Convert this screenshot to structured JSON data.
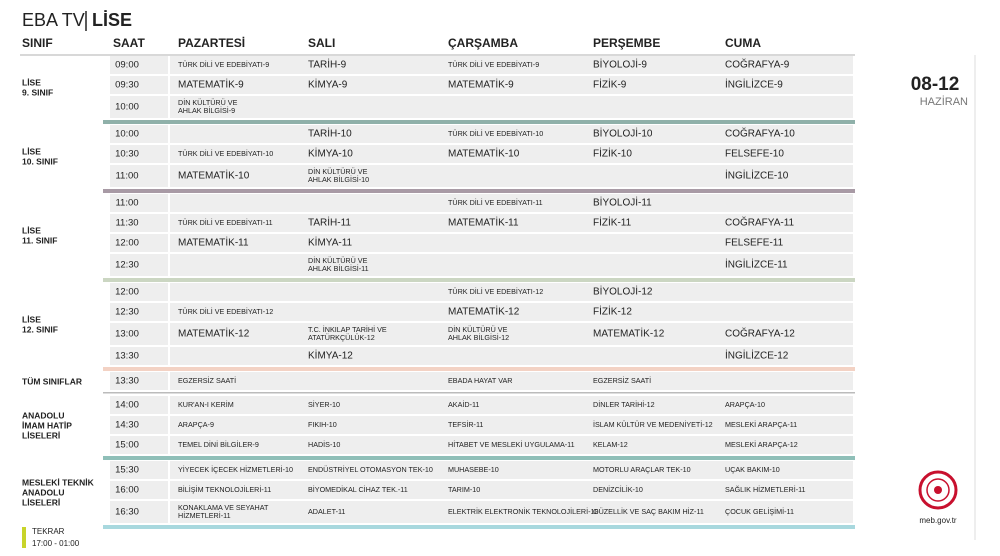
{
  "header": {
    "title": "EBA TV",
    "subtitle": "LİSE"
  },
  "columns": [
    "SINIF",
    "SAAT",
    "PAZARTESİ",
    "SALI",
    "ÇARŞAMBA",
    "PERŞEMBE",
    "CUMA"
  ],
  "date": {
    "range": "08-12",
    "month": "HAZİRAN"
  },
  "groups": [
    {
      "label": [
        "LİSE",
        "9. SINIF"
      ],
      "color": "#8fb0a9",
      "rows": [
        {
          "time": "09:00",
          "cells": [
            "TÜRK DİLİ VE EDEBİYATI-9",
            "TARİH-9",
            "TÜRK DİLİ VE EDEBİYATI-9",
            "BİYOLOJİ-9",
            "COĞRAFYA-9"
          ]
        },
        {
          "time": "09:30",
          "cells": [
            "MATEMATİK-9",
            "KİMYA-9",
            "MATEMATİK-9",
            "FİZİK-9",
            "İNGİLİZCE-9"
          ]
        },
        {
          "time": "10:00",
          "cells": [
            [
              "DİN KÜLTÜRÜ VE",
              "AHLAK BİLGİSİ-9"
            ],
            null,
            null,
            null,
            null
          ]
        }
      ]
    },
    {
      "label": [
        "LİSE",
        "10. SINIF"
      ],
      "color": "#a89aa5",
      "rows": [
        {
          "time": "10:00",
          "cells": [
            null,
            "TARİH-10",
            "TÜRK DİLİ VE EDEBİYATI-10",
            "BİYOLOJİ-10",
            "COĞRAFYA-10"
          ]
        },
        {
          "time": "10:30",
          "cells": [
            "TÜRK DİLİ VE EDEBİYATI-10",
            "KİMYA-10",
            "MATEMATİK-10",
            "FİZİK-10",
            "FELSEFE-10"
          ]
        },
        {
          "time": "11:00",
          "cells": [
            "MATEMATİK-10",
            [
              "DİN KÜLTÜRÜ VE",
              "AHLAK BİLGİSİ-10"
            ],
            null,
            null,
            "İNGİLİZCE-10"
          ]
        }
      ]
    },
    {
      "label": [
        "LİSE",
        "11. SINIF"
      ],
      "color": "#cbd6c2",
      "rows": [
        {
          "time": "11:00",
          "cells": [
            null,
            null,
            "TÜRK DİLİ VE EDEBİYATI-11",
            "BİYOLOJİ-11",
            null
          ]
        },
        {
          "time": "11:30",
          "cells": [
            "TÜRK DİLİ VE EDEBİYATI-11",
            "TARİH-11",
            "MATEMATİK-11",
            "FİZİK-11",
            "COĞRAFYA-11"
          ]
        },
        {
          "time": "12:00",
          "cells": [
            "MATEMATİK-11",
            "KİMYA-11",
            null,
            null,
            "FELSEFE-11"
          ]
        },
        {
          "time": "12:30",
          "cells": [
            null,
            [
              "DİN KÜLTÜRÜ VE",
              "AHLAK BİLGİSİ-11"
            ],
            null,
            null,
            "İNGİLİZCE-11"
          ]
        }
      ]
    },
    {
      "label": [
        "LİSE",
        "12. SINIF"
      ],
      "color": "#f3d2c4",
      "rows": [
        {
          "time": "12:00",
          "cells": [
            null,
            null,
            "TÜRK DİLİ VE EDEBİYATI-12",
            "BİYOLOJİ-12",
            null
          ]
        },
        {
          "time": "12:30",
          "cells": [
            "TÜRK DİLİ VE EDEBİYATI-12",
            null,
            "MATEMATİK-12",
            "FİZİK-12",
            null
          ]
        },
        {
          "time": "13:00",
          "cells": [
            "MATEMATİK-12",
            [
              "T.C. İNKILAP TARİHİ VE",
              "ATATÜRKÇÜLÜK-12"
            ],
            [
              "DİN KÜLTÜRÜ VE",
              "AHLAK BİLGİSİ-12"
            ],
            "MATEMATİK-12",
            "COĞRAFYA-12"
          ]
        },
        {
          "time": "13:30",
          "cells": [
            null,
            "KİMYA-12",
            null,
            null,
            "İNGİLİZCE-12"
          ]
        }
      ]
    },
    {
      "label": [
        "TÜM SINIFLAR"
      ],
      "color": "#bbbbbb",
      "rows": [
        {
          "time": "13:30",
          "cells": [
            "EGZERSİZ SAATİ",
            null,
            "EBADA HAYAT VAR",
            "EGZERSİZ SAATİ",
            null
          ]
        }
      ]
    },
    {
      "label": [
        "ANADOLU",
        "İMAM HATİP",
        "LİSELERİ"
      ],
      "color": "#8fbfb8",
      "rows": [
        {
          "time": "14:00",
          "cells": [
            "KUR'AN-I KERİM",
            "SİYER-10",
            "AKAİD-11",
            "DİNLER TARİHİ-12",
            "ARAPÇA-10"
          ]
        },
        {
          "time": "14:30",
          "cells": [
            "ARAPÇA-9",
            "FIKIH-10",
            "TEFSİR-11",
            "İSLAM KÜLTÜR VE MEDENİYETİ-12",
            "MESLEKİ ARAPÇA-11"
          ]
        },
        {
          "time": "15:00",
          "cells": [
            "TEMEL DİNİ BİLGİLER-9",
            "HADİS-10",
            "HİTABET VE MESLEKİ UYGULAMA-11",
            "KELAM-12",
            "MESLEKİ ARAPÇA-12"
          ]
        }
      ]
    },
    {
      "label": [
        "MESLEKİ TEKNİK",
        "ANADOLU",
        "LİSELERİ"
      ],
      "color": "#a8d8de",
      "rows": [
        {
          "time": "15:30",
          "cells": [
            "YİYECEK İÇECEK HİZMETLERİ-10",
            "ENDÜSTRİYEL OTOMASYON TEK-10",
            "MUHASEBE-10",
            "MOTORLU ARAÇLAR TEK-10",
            "UÇAK BAKIM-10"
          ]
        },
        {
          "time": "16:00",
          "cells": [
            "BİLİŞİM TEKNOLOJİLERİ-11",
            "BİYOMEDİKAL CİHAZ TEK.-11",
            "TARIM-10",
            "DENİZCİLİK-10",
            "SAĞLIK HİZMETLERİ-11"
          ]
        },
        {
          "time": "16:30",
          "cells": [
            [
              "KONAKLAMA VE SEYAHAT",
              "HİZMETLERİ-11"
            ],
            "ADALET-11",
            "ELEKTRİK ELEKTRONİK TEKNOLOJİLERİ-10",
            "GÜZELLİK VE SAÇ BAKIM HİZ-11",
            "ÇOCUK GELİŞİMİ-11"
          ]
        }
      ]
    }
  ],
  "footer": {
    "label": "TEKRAR",
    "time": "17:00 - 01:00",
    "site": "meb.gov.tr"
  }
}
